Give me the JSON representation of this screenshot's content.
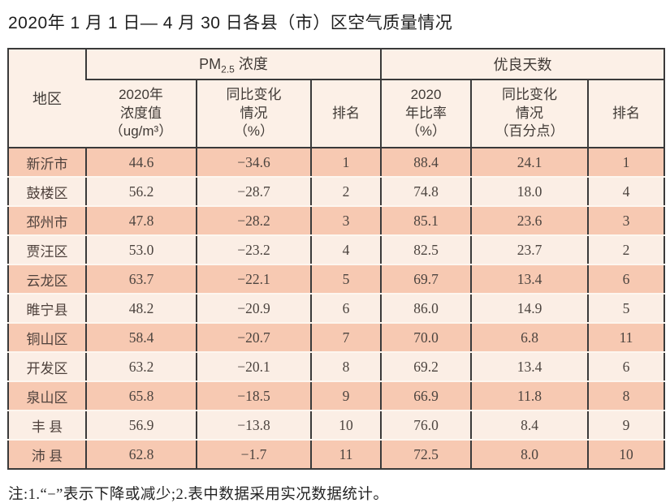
{
  "title": "2020年 1 月 1 日— 4 月 30 日各县（市）区空气质量情况",
  "table": {
    "header": {
      "region": "地区",
      "pm_group": {
        "prefix": "PM",
        "subscript": "2.5",
        "suffix": " 浓度"
      },
      "good_days_group": "优良天数",
      "sub": [
        "2020年\n浓度值\n（ug/m³）",
        "同比变化\n情况\n（%）",
        "排名",
        "2020\n年比率\n（%）",
        "同比变化\n情况\n（百分点）",
        "排名"
      ]
    },
    "rows": [
      [
        "新沂市",
        "44.6",
        "−34.6",
        "1",
        "88.4",
        "24.1",
        "1"
      ],
      [
        "鼓楼区",
        "56.2",
        "−28.7",
        "2",
        "74.8",
        "18.0",
        "4"
      ],
      [
        "邳州市",
        "47.8",
        "−28.2",
        "3",
        "85.1",
        "23.6",
        "3"
      ],
      [
        "贾汪区",
        "53.0",
        "−23.2",
        "4",
        "82.5",
        "23.7",
        "2"
      ],
      [
        "云龙区",
        "63.7",
        "−22.1",
        "5",
        "69.7",
        "13.4",
        "6"
      ],
      [
        "睢宁县",
        "48.2",
        "−20.9",
        "6",
        "86.0",
        "14.9",
        "5"
      ],
      [
        "铜山区",
        "58.4",
        "−20.7",
        "7",
        "70.0",
        "6.8",
        "11"
      ],
      [
        "开发区",
        "63.2",
        "−20.1",
        "8",
        "69.2",
        "13.4",
        "6"
      ],
      [
        "泉山区",
        "65.8",
        "−18.5",
        "9",
        "66.9",
        "11.8",
        "8"
      ],
      [
        "丰 县",
        "56.9",
        "−13.8",
        "10",
        "76.0",
        "8.4",
        "9"
      ],
      [
        "沛 县",
        "62.8",
        "−1.7",
        "11",
        "72.5",
        "8.0",
        "10"
      ]
    ]
  },
  "note": "注:1.“−”表示下降或减少;2.表中数据采用实况数据统计。",
  "colors": {
    "header_bg": "#fcf0e7",
    "row_salmon": "#f7c9b2",
    "row_light": "#fbeee5",
    "border": "#3a3a3a",
    "text": "#4c443f"
  }
}
